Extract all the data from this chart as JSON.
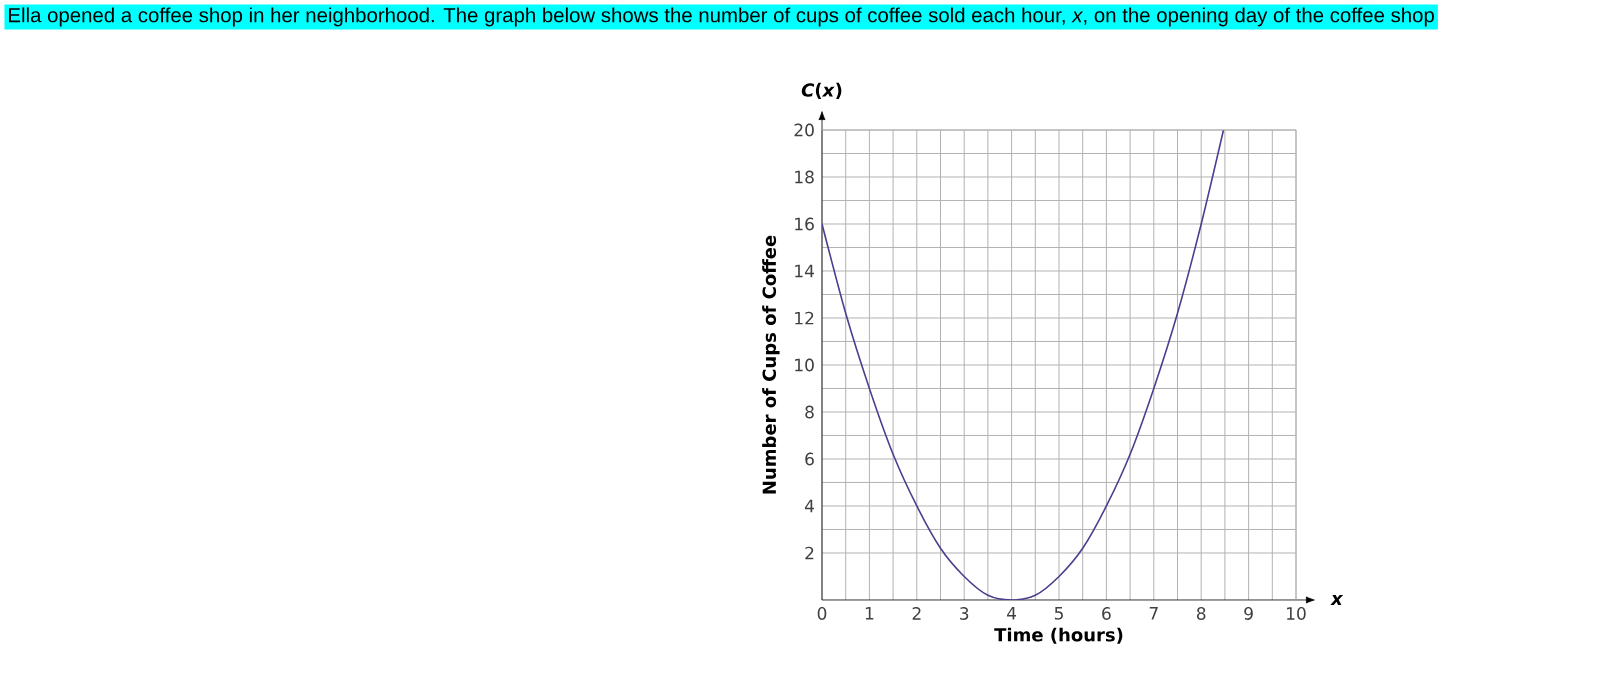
{
  "chart_data": {
    "type": "line",
    "title": "Ella opened a coffee shop in her neighborhood. The graph below shows the number of cups of coffee sold each hour, *x*, on the opening day of the coffee shop",
    "xlabel": "Time (hours)",
    "ylabel": "Number of Cups of Coffee",
    "annotations": [
      "*C*(*x*)",
      "*x*"
    ],
    "x": [
      0,
      0.5,
      1,
      1.5,
      2,
      2.5,
      3,
      3.5,
      4,
      4.5,
      5,
      5.5,
      6,
      6.5,
      7,
      7.5,
      8,
      8.47
    ],
    "series": [
      {
        "color": "#4f3d8f",
        "values": [
          16,
          12.2,
          9,
          6.2,
          4,
          2.2,
          1,
          0.2,
          0,
          0.2,
          1,
          2.2,
          4,
          6.2,
          9,
          12.2,
          16,
          20
        ]
      }
    ],
    "xlim": [
      0,
      10
    ],
    "ylim": [
      0,
      20
    ],
    "xticks": [
      0,
      1,
      2,
      3,
      4,
      5,
      6,
      7,
      8,
      9,
      10
    ],
    "yticks": [
      2,
      4,
      6,
      8,
      10,
      12,
      14,
      16,
      18,
      20
    ],
    "grid": true,
    "marker": "none",
    "line_style": "solid"
  }
}
